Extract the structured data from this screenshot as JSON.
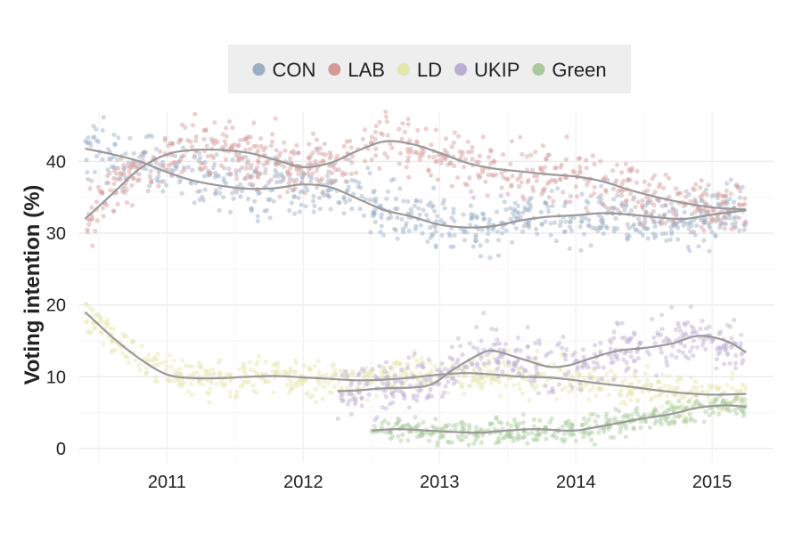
{
  "chart_data": {
    "type": "scatter",
    "title": "",
    "ylabel": "Voting intention (%)",
    "xlabel": "",
    "xlim": [
      2010.35,
      2015.45
    ],
    "ylim": [
      -2,
      47
    ],
    "x_ticks": [
      2011,
      2012,
      2013,
      2014,
      2015
    ],
    "x_tick_labels": [
      "2011",
      "2012",
      "2013",
      "2014",
      "2015"
    ],
    "y_ticks": [
      0,
      10,
      20,
      30,
      40
    ],
    "y_tick_labels": [
      "0",
      "10",
      "20",
      "30",
      "40"
    ],
    "grid": true,
    "legend": {
      "position": "top"
    },
    "trend_color": "#999999",
    "series": [
      {
        "name": "CON",
        "color": "#9aaec4",
        "trend": [
          [
            2010.4,
            41.8
          ],
          [
            2010.6,
            41.0
          ],
          [
            2010.8,
            40.0
          ],
          [
            2011.0,
            38.5
          ],
          [
            2011.2,
            37.3
          ],
          [
            2011.4,
            36.6
          ],
          [
            2011.6,
            36.2
          ],
          [
            2011.8,
            36.3
          ],
          [
            2012.0,
            36.8
          ],
          [
            2012.2,
            36.4
          ],
          [
            2012.4,
            34.8
          ],
          [
            2012.6,
            33.2
          ],
          [
            2012.8,
            32.3
          ],
          [
            2013.0,
            31.2
          ],
          [
            2013.2,
            30.8
          ],
          [
            2013.4,
            31.0
          ],
          [
            2013.6,
            31.8
          ],
          [
            2013.8,
            32.3
          ],
          [
            2014.0,
            32.5
          ],
          [
            2014.2,
            32.8
          ],
          [
            2014.4,
            32.6
          ],
          [
            2014.6,
            32.2
          ],
          [
            2014.8,
            32.0
          ],
          [
            2015.0,
            32.6
          ],
          [
            2015.25,
            33.2
          ]
        ]
      },
      {
        "name": "LAB",
        "color": "#d49a9a",
        "trend": [
          [
            2010.4,
            32.0
          ],
          [
            2010.6,
            35.5
          ],
          [
            2010.8,
            39.0
          ],
          [
            2011.0,
            41.0
          ],
          [
            2011.2,
            41.6
          ],
          [
            2011.4,
            41.6
          ],
          [
            2011.6,
            41.2
          ],
          [
            2011.8,
            40.2
          ],
          [
            2012.0,
            39.2
          ],
          [
            2012.2,
            39.8
          ],
          [
            2012.4,
            41.5
          ],
          [
            2012.6,
            42.8
          ],
          [
            2012.8,
            42.4
          ],
          [
            2013.0,
            41.2
          ],
          [
            2013.2,
            39.8
          ],
          [
            2013.4,
            39.0
          ],
          [
            2013.6,
            38.6
          ],
          [
            2013.8,
            38.2
          ],
          [
            2014.0,
            37.9
          ],
          [
            2014.2,
            37.2
          ],
          [
            2014.4,
            36.0
          ],
          [
            2014.6,
            35.0
          ],
          [
            2014.8,
            34.2
          ],
          [
            2015.0,
            33.6
          ],
          [
            2015.25,
            33.3
          ]
        ]
      },
      {
        "name": "LD",
        "color": "#e4e6b0",
        "trend": [
          [
            2010.4,
            19.0
          ],
          [
            2010.6,
            15.5
          ],
          [
            2010.8,
            12.5
          ],
          [
            2011.0,
            10.3
          ],
          [
            2011.2,
            9.8
          ],
          [
            2011.4,
            9.8
          ],
          [
            2011.6,
            10.0
          ],
          [
            2011.8,
            10.1
          ],
          [
            2012.0,
            9.9
          ],
          [
            2012.2,
            9.7
          ],
          [
            2012.4,
            9.5
          ],
          [
            2012.6,
            9.6
          ],
          [
            2012.8,
            9.9
          ],
          [
            2013.0,
            10.3
          ],
          [
            2013.2,
            10.5
          ],
          [
            2013.4,
            10.3
          ],
          [
            2013.6,
            10.0
          ],
          [
            2013.8,
            9.9
          ],
          [
            2014.0,
            9.5
          ],
          [
            2014.2,
            9.0
          ],
          [
            2014.4,
            8.6
          ],
          [
            2014.6,
            8.1
          ],
          [
            2014.8,
            7.7
          ],
          [
            2015.0,
            7.5
          ],
          [
            2015.25,
            7.6
          ]
        ]
      },
      {
        "name": "UKIP",
        "color": "#bcaed2",
        "trend": [
          [
            2012.25,
            8.0
          ],
          [
            2012.4,
            8.1
          ],
          [
            2012.6,
            8.4
          ],
          [
            2012.8,
            8.5
          ],
          [
            2012.95,
            9.0
          ],
          [
            2013.1,
            11.0
          ],
          [
            2013.3,
            13.2
          ],
          [
            2013.4,
            13.6
          ],
          [
            2013.6,
            12.5
          ],
          [
            2013.8,
            11.4
          ],
          [
            2013.95,
            11.6
          ],
          [
            2014.1,
            12.5
          ],
          [
            2014.3,
            13.6
          ],
          [
            2014.5,
            14.0
          ],
          [
            2014.7,
            14.6
          ],
          [
            2014.9,
            15.7
          ],
          [
            2015.1,
            15.0
          ],
          [
            2015.25,
            13.4
          ]
        ]
      },
      {
        "name": "Green",
        "color": "#a9c99c",
        "trend": [
          [
            2012.5,
            2.5
          ],
          [
            2012.7,
            2.7
          ],
          [
            2012.9,
            2.5
          ],
          [
            2013.1,
            2.3
          ],
          [
            2013.3,
            2.2
          ],
          [
            2013.5,
            2.5
          ],
          [
            2013.7,
            2.7
          ],
          [
            2013.9,
            2.5
          ],
          [
            2014.0,
            2.5
          ],
          [
            2014.1,
            2.8
          ],
          [
            2014.3,
            3.5
          ],
          [
            2014.5,
            4.2
          ],
          [
            2014.7,
            4.8
          ],
          [
            2014.9,
            5.7
          ],
          [
            2015.1,
            6.0
          ],
          [
            2015.25,
            5.8
          ]
        ]
      }
    ]
  }
}
